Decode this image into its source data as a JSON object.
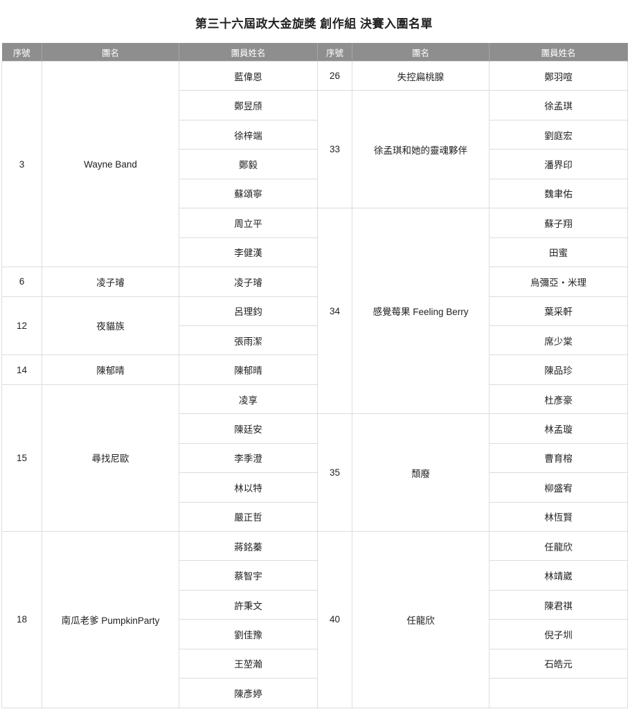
{
  "title": "第三十六屆政大金旋獎 創作組 決賽入圍名單",
  "headers": [
    "序號",
    "團名",
    "團員姓名",
    "序號",
    "團名",
    "團員姓名"
  ],
  "colors": {
    "header_bg": "#8e8e8e",
    "header_text": "#ffffff",
    "border": "#dcdcdc"
  },
  "left_groups": [
    {
      "no": "3",
      "band": "Wayne Band",
      "members": [
        "藍偉恩",
        "鄭昱頎",
        "徐梓端",
        "鄭毅",
        "蘇頌寧",
        "周立平",
        "李健漢"
      ]
    },
    {
      "no": "6",
      "band": "凌子璿",
      "members": [
        "凌子璿"
      ]
    },
    {
      "no": "12",
      "band": "夜貓族",
      "members": [
        "呂理鈞",
        "張雨潔"
      ]
    },
    {
      "no": "14",
      "band": "陳郁晴",
      "members": [
        "陳郁晴"
      ]
    },
    {
      "no": "15",
      "band": "尋找尼歐",
      "members": [
        "凌享",
        "陳廷安",
        "李季澄",
        "林以特",
        "嚴正哲"
      ]
    },
    {
      "no": "18",
      "band": "南瓜老爹 PumpkinParty",
      "members": [
        "蔣銘蓁",
        "蔡智宇",
        "許秉文",
        "劉佳豫",
        "王堃瀚",
        "陳彥婷"
      ]
    }
  ],
  "right_groups": [
    {
      "no": "26",
      "band": "失控扁桃腺",
      "members": [
        "鄭羽喧"
      ]
    },
    {
      "no": "33",
      "band": "徐孟琪和她的靈魂夥伴",
      "members": [
        "徐孟琪",
        "劉庭宏",
        "潘界印",
        "魏聿佑"
      ]
    },
    {
      "no": "34",
      "band": "感覺莓果 Feeling Berry",
      "members": [
        "蘇子翔",
        "田蜜",
        "烏彌亞・米理",
        "葉采軒",
        "席少棠",
        "陳品珍",
        "杜彥豪"
      ]
    },
    {
      "no": "35",
      "band": "頹廢",
      "members": [
        "林孟璇",
        "曹育榕",
        "柳盛宥",
        "林恆賢"
      ]
    },
    {
      "no": "40",
      "band": "任龍欣",
      "members": [
        "任龍欣",
        "林靖崴",
        "陳君祺",
        "倪子圳",
        "石皓元",
        ""
      ]
    }
  ]
}
